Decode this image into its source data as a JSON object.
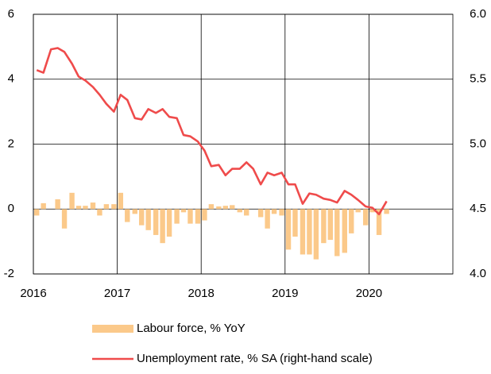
{
  "chart_data": {
    "type": "bar_line",
    "x": [
      2016.04,
      2016.12,
      2016.21,
      2016.29,
      2016.37,
      2016.46,
      2016.54,
      2016.62,
      2016.71,
      2016.79,
      2016.87,
      2016.96,
      2017.04,
      2017.12,
      2017.21,
      2017.29,
      2017.37,
      2017.46,
      2017.54,
      2017.62,
      2017.71,
      2017.79,
      2017.87,
      2017.96,
      2018.04,
      2018.12,
      2018.21,
      2018.29,
      2018.37,
      2018.46,
      2018.54,
      2018.62,
      2018.71,
      2018.79,
      2018.87,
      2018.96,
      2019.04,
      2019.12,
      2019.21,
      2019.29,
      2019.37,
      2019.46,
      2019.54,
      2019.62,
      2019.71,
      2019.79,
      2019.87,
      2019.96,
      2020.04,
      2020.12,
      2020.21
    ],
    "series": [
      {
        "name": "Labour force, % YoY",
        "type": "bar",
        "color": "#fbc98a",
        "axis": "y",
        "values": [
          -0.2,
          0.18,
          0,
          0.3,
          -0.6,
          0.5,
          0.1,
          0.1,
          0.2,
          -0.2,
          0.15,
          0.15,
          0.5,
          -0.4,
          -0.15,
          -0.5,
          -0.65,
          -0.8,
          -1.05,
          -0.85,
          -0.45,
          -0.1,
          -0.45,
          -0.45,
          -0.35,
          0.15,
          0.08,
          0.1,
          0.12,
          -0.1,
          -0.2,
          0,
          -0.25,
          -0.6,
          -0.15,
          -0.2,
          -1.25,
          -0.85,
          -1.4,
          -1.4,
          -1.55,
          -1.05,
          -0.95,
          -1.45,
          -1.35,
          -0.75,
          -0.1,
          -0.5,
          -0.1,
          -0.8,
          -0.15
        ]
      },
      {
        "name": "Unemployment rate, % SA (right-hand scale)",
        "type": "line",
        "color": "#ef4b4b",
        "axis": "y2",
        "values": [
          5.57,
          5.55,
          5.73,
          5.74,
          5.71,
          5.62,
          5.52,
          5.49,
          5.44,
          5.38,
          5.31,
          5.25,
          5.38,
          5.34,
          5.2,
          5.19,
          5.27,
          5.24,
          5.27,
          5.21,
          5.2,
          5.07,
          5.06,
          5.02,
          4.95,
          4.83,
          4.84,
          4.76,
          4.81,
          4.81,
          4.86,
          4.81,
          4.69,
          4.78,
          4.76,
          4.78,
          4.69,
          4.69,
          4.54,
          4.62,
          4.61,
          4.58,
          4.57,
          4.55,
          4.64,
          4.61,
          4.57,
          4.52,
          4.51,
          4.46,
          4.56
        ]
      }
    ],
    "xlim": [
      2016,
      2021
    ],
    "xticks": [
      2016,
      2017,
      2018,
      2019,
      2020
    ],
    "ylim": [
      -2,
      6
    ],
    "yticks": [
      -2,
      0,
      2,
      4,
      6
    ],
    "y2lim": [
      4,
      6
    ],
    "y2ticks": [
      {
        "value": 4,
        "label": "4.0"
      },
      {
        "value": 4.5,
        "label": "4.5"
      },
      {
        "value": 5,
        "label": "5.0"
      },
      {
        "value": 5.5,
        "label": "5.5"
      },
      {
        "value": 6,
        "label": "6.0"
      }
    ],
    "grid": true,
    "legend": "bottom"
  }
}
